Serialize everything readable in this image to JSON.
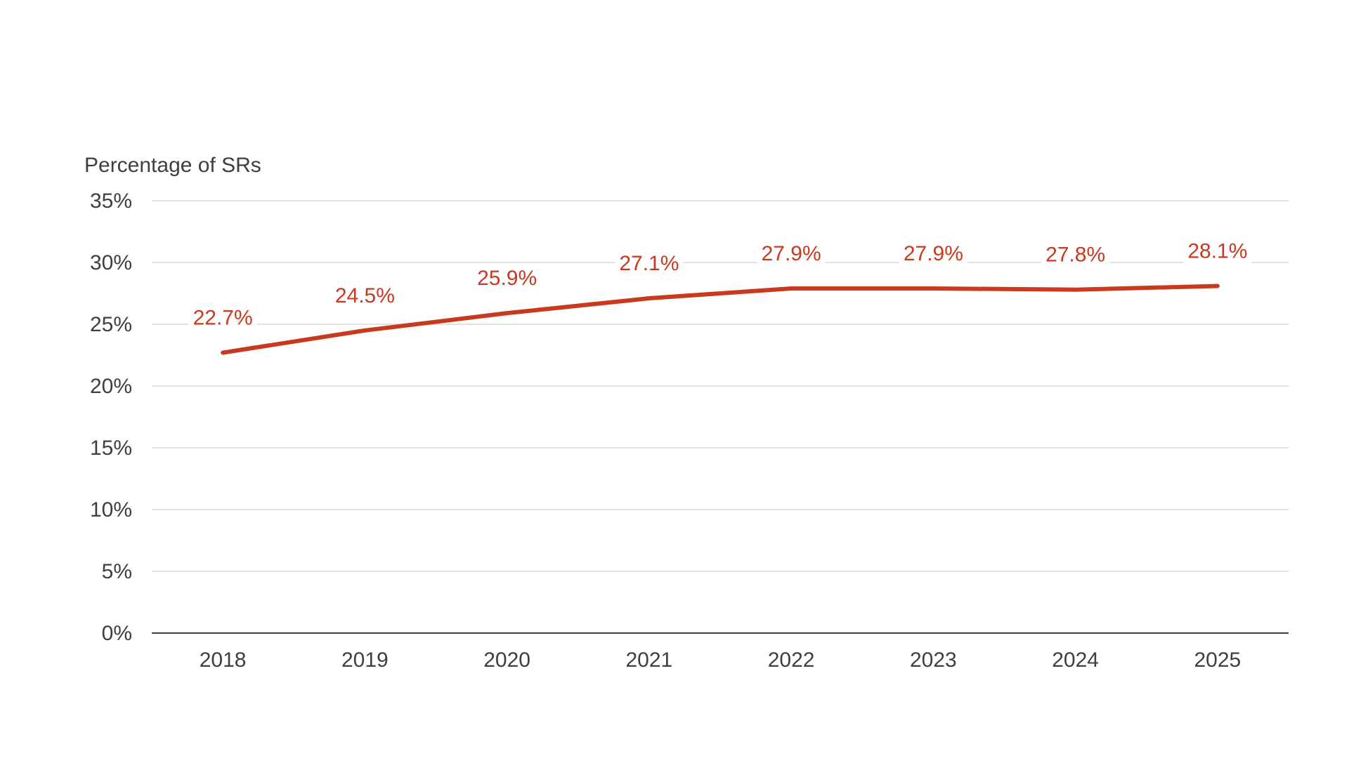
{
  "chart_data": {
    "type": "line",
    "title": "",
    "xlabel": "",
    "ylabel": "Percentage of SRs",
    "x": [
      "2018",
      "2019",
      "2020",
      "2021",
      "2022",
      "2023",
      "2024",
      "2025"
    ],
    "series": [
      {
        "values": [
          22.7,
          24.5,
          25.9,
          27.1,
          27.9,
          27.9,
          27.8,
          28.1
        ],
        "labels": [
          "22.7%",
          "24.5%",
          "25.9%",
          "27.1%",
          "27.9%",
          "27.9%",
          "27.8%",
          "28.1%"
        ],
        "color": "#c9391f"
      }
    ],
    "ylim": [
      0,
      35
    ],
    "yticks": [
      0,
      5,
      10,
      15,
      20,
      25,
      30,
      35
    ],
    "ytick_labels": [
      "0%",
      "5%",
      "10%",
      "15%",
      "20%",
      "25%",
      "30%",
      "35%"
    ],
    "grid": true,
    "legend": "none"
  },
  "colors": {
    "line": "#c9391f",
    "grid": "#d9d9d9",
    "axis": "#3c4043",
    "text": "#3c4043"
  }
}
